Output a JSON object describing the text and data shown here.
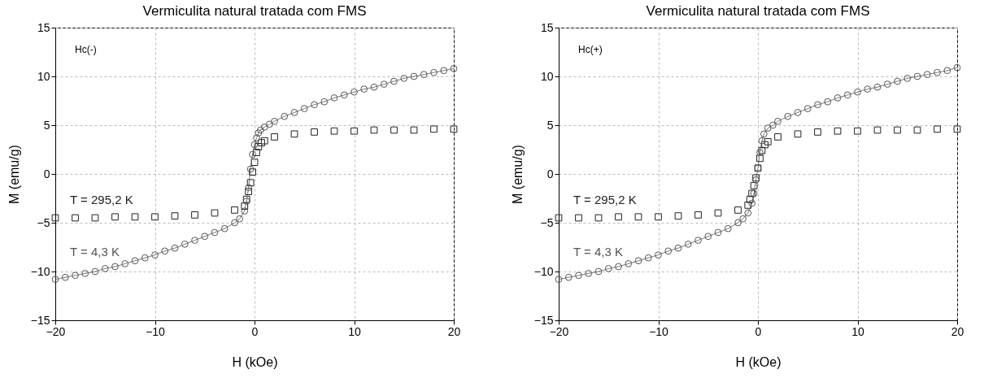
{
  "chart_data": [
    {
      "type": "scatter",
      "title": "Vermiculita natural tratada com FMS",
      "xlabel": "H (kOe)",
      "ylabel": "M (emu/g)",
      "annotations": [
        "Hc(-)"
      ],
      "xlim": [
        -20,
        20
      ],
      "ylim": [
        -15,
        15
      ],
      "xticks": [
        -20,
        -10,
        0,
        10,
        20
      ],
      "yticks": [
        -15,
        -10,
        -5,
        0,
        5,
        10,
        15
      ],
      "grid": true,
      "series": [
        {
          "name": "T = 295,2 K",
          "type": "scatter",
          "marker": "square",
          "color": "#222222",
          "x": [
            -20,
            -18,
            -16,
            -14,
            -12,
            -10,
            -8,
            -6,
            -4,
            -2,
            -1,
            -0.8,
            -0.6,
            -0.4,
            -0.2,
            0,
            0.2,
            0.4,
            0.7,
            1,
            2,
            4,
            6,
            8,
            10,
            12,
            14,
            16,
            18,
            20
          ],
          "values": [
            -4.5,
            -4.5,
            -4.5,
            -4.4,
            -4.4,
            -4.4,
            -4.3,
            -4.2,
            -4.0,
            -3.7,
            -3.3,
            -2.6,
            -1.8,
            -0.9,
            0.2,
            1.2,
            2.2,
            2.8,
            3.2,
            3.4,
            3.8,
            4.1,
            4.3,
            4.4,
            4.4,
            4.5,
            4.5,
            4.5,
            4.6,
            4.6
          ]
        },
        {
          "name": "T = 4,3 K",
          "type": "line",
          "marker": "circle",
          "color": "#555555",
          "x": [
            -20,
            -19,
            -18,
            -17,
            -16,
            -15,
            -14,
            -13,
            -12,
            -11,
            -10,
            -9,
            -8,
            -7,
            -6,
            -5,
            -4,
            -3,
            -2,
            -1.5,
            -1,
            -0.8,
            -0.6,
            -0.4,
            -0.2,
            0,
            0.2,
            0.4,
            0.6,
            1,
            1.5,
            2,
            3,
            4,
            5,
            6,
            7,
            8,
            9,
            10,
            11,
            12,
            13,
            14,
            15,
            16,
            17,
            18,
            19,
            20
          ],
          "values": [
            -10.8,
            -10.6,
            -10.4,
            -10.2,
            -10.0,
            -9.7,
            -9.5,
            -9.2,
            -8.9,
            -8.6,
            -8.3,
            -7.9,
            -7.6,
            -7.2,
            -6.8,
            -6.4,
            -6.0,
            -5.6,
            -5.0,
            -4.6,
            -3.8,
            -2.8,
            -1.4,
            0.5,
            2.0,
            3.0,
            3.7,
            4.2,
            4.5,
            4.8,
            5.1,
            5.4,
            5.9,
            6.3,
            6.7,
            7.1,
            7.4,
            7.8,
            8.1,
            8.4,
            8.7,
            8.9,
            9.2,
            9.5,
            9.8,
            10.0,
            10.2,
            10.4,
            10.6,
            10.8
          ]
        }
      ]
    },
    {
      "type": "scatter",
      "title": "Vermiculita natural tratada com FMS",
      "xlabel": "H (kOe)",
      "ylabel": "M (emu/g)",
      "annotations": [
        "Hc(+)"
      ],
      "xlim": [
        -20,
        20
      ],
      "ylim": [
        -15,
        15
      ],
      "xticks": [
        -20,
        -10,
        0,
        10,
        20
      ],
      "yticks": [
        -15,
        -10,
        -5,
        0,
        5,
        10,
        15
      ],
      "grid": true,
      "series": [
        {
          "name": "T = 295,2 K",
          "type": "scatter",
          "marker": "square",
          "color": "#222222",
          "x": [
            -20,
            -18,
            -16,
            -14,
            -12,
            -10,
            -8,
            -6,
            -4,
            -2,
            -1,
            -0.8,
            -0.6,
            -0.4,
            -0.2,
            0,
            0.2,
            0.4,
            0.7,
            1,
            2,
            4,
            6,
            8,
            10,
            12,
            14,
            16,
            18,
            20
          ],
          "values": [
            -4.5,
            -4.5,
            -4.5,
            -4.4,
            -4.4,
            -4.4,
            -4.3,
            -4.2,
            -4.0,
            -3.7,
            -3.2,
            -2.6,
            -2.0,
            -1.2,
            -0.4,
            0.6,
            1.6,
            2.4,
            3.0,
            3.3,
            3.8,
            4.1,
            4.3,
            4.4,
            4.4,
            4.5,
            4.5,
            4.5,
            4.6,
            4.6
          ]
        },
        {
          "name": "T = 4,3 K",
          "type": "line",
          "marker": "circle",
          "color": "#555555",
          "x": [
            -20,
            -19,
            -18,
            -17,
            -16,
            -15,
            -14,
            -13,
            -12,
            -11,
            -10,
            -9,
            -8,
            -7,
            -6,
            -5,
            -4,
            -3,
            -2,
            -1.5,
            -1,
            -0.6,
            -0.4,
            -0.2,
            0,
            0.2,
            0.4,
            0.6,
            1,
            1.5,
            2,
            3,
            4,
            5,
            6,
            7,
            8,
            9,
            10,
            11,
            12,
            13,
            14,
            15,
            16,
            17,
            18,
            19,
            20
          ],
          "values": [
            -10.8,
            -10.6,
            -10.4,
            -10.2,
            -10.0,
            -9.7,
            -9.5,
            -9.2,
            -8.9,
            -8.6,
            -8.3,
            -7.9,
            -7.6,
            -7.2,
            -6.8,
            -6.4,
            -6.0,
            -5.6,
            -5.0,
            -4.6,
            -4.0,
            -3.0,
            -2.0,
            -0.6,
            0.6,
            2.2,
            3.4,
            4.1,
            4.7,
            5.0,
            5.4,
            5.9,
            6.3,
            6.7,
            7.1,
            7.4,
            7.8,
            8.1,
            8.4,
            8.7,
            8.9,
            9.2,
            9.5,
            9.8,
            10.0,
            10.2,
            10.4,
            10.6,
            10.9
          ]
        }
      ]
    }
  ]
}
